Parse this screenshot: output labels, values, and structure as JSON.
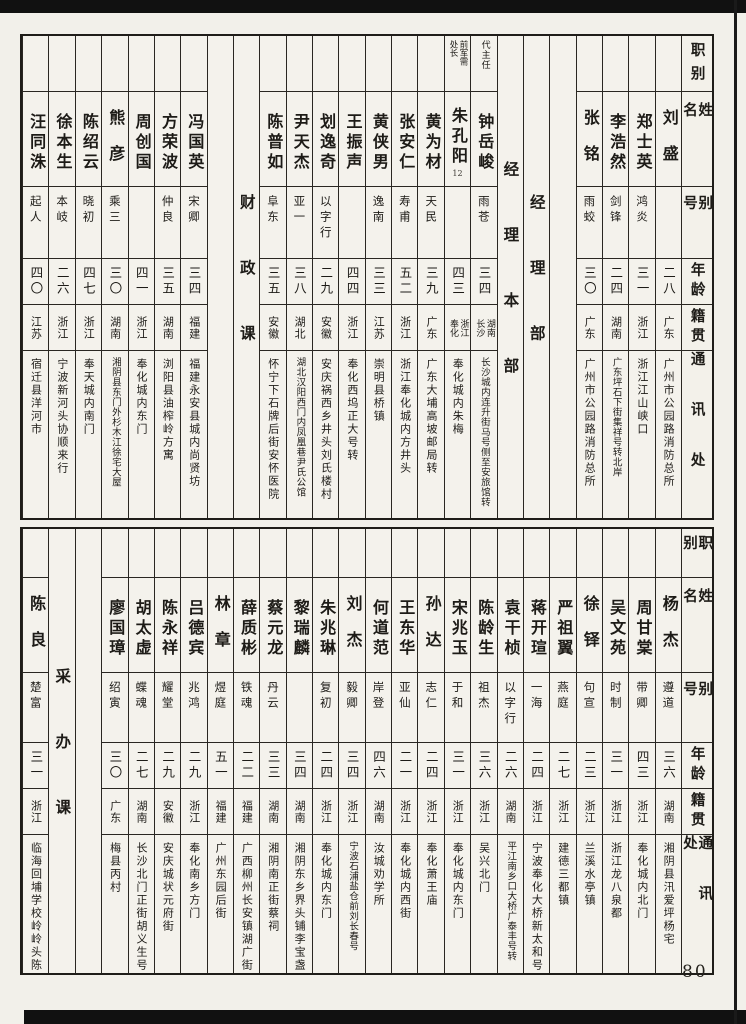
{
  "page_number": "80",
  "colors": {
    "ink": "#1d1b17",
    "paper": "#f2f0ea"
  },
  "row_headers": [
    "职别",
    "姓名",
    "别号",
    "年龄",
    "籍贯",
    "通讯处"
  ],
  "tables": [
    {
      "id": "top",
      "columns": [
        {
          "type": "header"
        },
        {
          "type": "person",
          "name": "刘盛",
          "alias": "",
          "age": "二八",
          "origin": "广东",
          "address": "广州市公园路消防总所"
        },
        {
          "type": "person",
          "name": "郑士英",
          "alias": "鸿炎",
          "age": "三一",
          "origin": "浙江",
          "address": "浙江江山峡口"
        },
        {
          "type": "person",
          "name": "李浩然",
          "alias": "剑锋",
          "age": "二四",
          "origin": "湖南",
          "address": "广东坪石下街集祥号转北岸"
        },
        {
          "type": "person",
          "name": "张铭",
          "alias": "雨蛟",
          "age": "三〇",
          "origin": "广东",
          "address": "广州市公园路消防总所"
        },
        {
          "type": "blank"
        },
        {
          "type": "section",
          "label": "经理部"
        },
        {
          "type": "section",
          "label": "经理本部"
        },
        {
          "type": "person",
          "title": "代主任",
          "name": "钟岳峻",
          "alias": "雨苍",
          "age": "三四",
          "origin": [
            "湖南",
            "长沙"
          ],
          "address": "长沙城内连升街马号侧至安旅馆转"
        },
        {
          "type": "person",
          "title": [
            "前军需",
            "处长"
          ],
          "name": "朱孔阳",
          "note": "12",
          "alias": "",
          "age": "四三",
          "origin": [
            "浙江",
            "奉化"
          ],
          "address": "奉化城内朱梅"
        },
        {
          "type": "person",
          "name": "黄为材",
          "alias": "天民",
          "age": "三九",
          "origin": "广东",
          "address": "广东大埔高坡邮局转"
        },
        {
          "type": "person",
          "name": "张安仁",
          "alias": "寿甫",
          "age": "五二",
          "origin": "浙江",
          "address": "浙江奉化城内方井头"
        },
        {
          "type": "person",
          "name": "黄侠男",
          "alias": "逸南",
          "age": "三三",
          "origin": "江苏",
          "address": "崇明县桥镇"
        },
        {
          "type": "person",
          "name": "王振声",
          "alias": "",
          "age": "四四",
          "origin": "浙江",
          "address": "奉化西坞正大号转"
        },
        {
          "type": "person",
          "name": "划逸奇",
          "alias": "以字行",
          "age": "二九",
          "origin": "安徽",
          "address": "安庆祸西乡井头刘氏楼村"
        },
        {
          "type": "person",
          "name": "尹天杰",
          "alias": "亚一",
          "age": "三八",
          "origin": "湖北",
          "address": "湖北汉阳西门内凤凰巷尹氏公馆"
        },
        {
          "type": "person",
          "name": "陈普如",
          "alias": "阜东",
          "age": "三五",
          "origin": "安徽",
          "address": "怀宁下石牌后街安怀医院"
        },
        {
          "type": "section",
          "label": "财政课"
        },
        {
          "type": "blank"
        },
        {
          "type": "person",
          "name": "冯国英",
          "alias": "宋卿",
          "age": "三四",
          "origin": "福建",
          "address": "福建永安县城内尚贤坊"
        },
        {
          "type": "person",
          "name": "方荣波",
          "alias": "仲良",
          "age": "三五",
          "origin": "湖南",
          "address": "浏阳县油榨岭方寓"
        },
        {
          "type": "person",
          "name": "周创国",
          "alias": "",
          "age": "四一",
          "origin": "浙江",
          "address": "奉化城内东门"
        },
        {
          "type": "person",
          "name": "熊彦",
          "alias": "乘三",
          "age": "三〇",
          "origin": "湖南",
          "address": "湘阴县东门外杉木江徐宅大屋"
        },
        {
          "type": "person",
          "name": "陈绍云",
          "alias": "晓初",
          "age": "四七",
          "origin": "浙江",
          "address": "奉天城内南门"
        },
        {
          "type": "person",
          "name": "徐本生",
          "alias": "本岐",
          "age": "二六",
          "origin": "浙江",
          "address": "宁波新河头协顺来行"
        },
        {
          "type": "person",
          "name": "汪同洙",
          "alias": "起人",
          "age": "四〇",
          "origin": "江苏",
          "address": "宿迁县洋河市"
        }
      ]
    },
    {
      "id": "bottom",
      "columns": [
        {
          "type": "header"
        },
        {
          "type": "person",
          "name": "杨杰",
          "alias": "遵道",
          "age": "三六",
          "origin": "湖南",
          "address": "湘阴县汛爱坪杨宅"
        },
        {
          "type": "person",
          "name": "周甘棠",
          "alias": "带卿",
          "age": "四三",
          "origin": "浙江",
          "address": "奉化城内北门"
        },
        {
          "type": "person",
          "name": "吴文苑",
          "alias": "时制",
          "age": "三一",
          "origin": "浙江",
          "address": "浙江龙八泉都"
        },
        {
          "type": "person",
          "name": "徐铎",
          "alias": "句宣",
          "age": "二三",
          "origin": "浙江",
          "address": "兰溪水亭镇"
        },
        {
          "type": "person",
          "name": "严祖翼",
          "alias": "燕庭",
          "age": "二七",
          "origin": "浙江",
          "address": "建德三都镇"
        },
        {
          "type": "person",
          "name": "蒋开瑄",
          "alias": "一海",
          "age": "二四",
          "origin": "浙江",
          "address": "宁波奉化大桥新太和号"
        },
        {
          "type": "person",
          "name": "袁干桢",
          "alias": "以字行",
          "age": "二六",
          "origin": "湖南",
          "address": "平江南乡口大桥广泰丰号转"
        },
        {
          "type": "person",
          "name": "陈龄生",
          "alias": "祖杰",
          "age": "三六",
          "origin": "浙江",
          "address": "吴兴北门"
        },
        {
          "type": "person",
          "name": "宋兆玉",
          "alias": "于和",
          "age": "三一",
          "origin": "浙江",
          "address": "奉化城内东门"
        },
        {
          "type": "person",
          "name": "孙达",
          "alias": "志仁",
          "age": "二四",
          "origin": "浙江",
          "address": "奉化萧王庙"
        },
        {
          "type": "person",
          "name": "王东华",
          "alias": "亚仙",
          "age": "二一",
          "origin": "浙江",
          "address": "奉化城内西街"
        },
        {
          "type": "person",
          "name": "何道范",
          "alias": "岸登",
          "age": "四六",
          "origin": "湖南",
          "address": "汝城劝学所"
        },
        {
          "type": "person",
          "name": "刘杰",
          "alias": "毅卿",
          "age": "三四",
          "origin": "浙江",
          "address": "宁波石浦盐仓前刘长春号"
        },
        {
          "type": "person",
          "name": "朱兆琳",
          "alias": "复初",
          "age": "二四",
          "origin": "浙江",
          "address": "奉化城内东门"
        },
        {
          "type": "person",
          "name": "黎瑞麟",
          "alias": "",
          "age": "三四",
          "origin": "湖南",
          "address": "湘阴东乡界头铺李宝盏"
        },
        {
          "type": "person",
          "name": "蔡元龙",
          "alias": "丹云",
          "age": "三三",
          "origin": "湖南",
          "address": "湘阴南正街蔡祠"
        },
        {
          "type": "person",
          "name": "薛质彬",
          "alias": "铁魂",
          "age": "二二",
          "origin": "福建",
          "address": "广西柳州长安镇湖广街"
        },
        {
          "type": "person",
          "name": "林章",
          "alias": "煜庭",
          "age": "五一",
          "origin": "福建",
          "address": "广州东园后街"
        },
        {
          "type": "person",
          "name": "吕德宾",
          "alias": "兆鸿",
          "age": "二九",
          "origin": "浙江",
          "address": "奉化南乡方门"
        },
        {
          "type": "person",
          "name": "陈永祥",
          "alias": "耀堂",
          "age": "二九",
          "origin": "安徽",
          "address": "安庆城状元府街"
        },
        {
          "type": "person",
          "name": "胡太虚",
          "alias": "蝶魂",
          "age": "二七",
          "origin": "湖南",
          "address": "长沙北门正街胡义生号"
        },
        {
          "type": "person",
          "name": "廖国璋",
          "alias": "绍寅",
          "age": "三〇",
          "origin": "广东",
          "address": "梅县丙村"
        },
        {
          "type": "blank"
        },
        {
          "type": "section",
          "label": "采办课"
        },
        {
          "type": "person",
          "name": "陈良",
          "alias": "楚富",
          "age": "三一",
          "origin": "浙江",
          "address": "临海回埔学校岭岭头陈"
        }
      ]
    }
  ]
}
